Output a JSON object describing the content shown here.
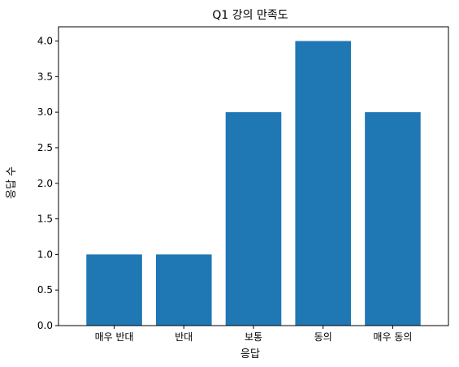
{
  "chart_data": {
    "type": "bar",
    "title": "Q1 강의 만족도",
    "xlabel": "응답",
    "ylabel": "응답 수",
    "categories": [
      "매우 반대",
      "반대",
      "보통",
      "동의",
      "매우 동의"
    ],
    "values": [
      1,
      1,
      3,
      4,
      3
    ],
    "ylim": [
      0,
      4.2
    ],
    "yticks": [
      "0.0",
      "0.5",
      "1.0",
      "1.5",
      "2.0",
      "2.5",
      "3.0",
      "3.5",
      "4.0"
    ],
    "grid": false,
    "bar_color": "#1f77b4"
  }
}
